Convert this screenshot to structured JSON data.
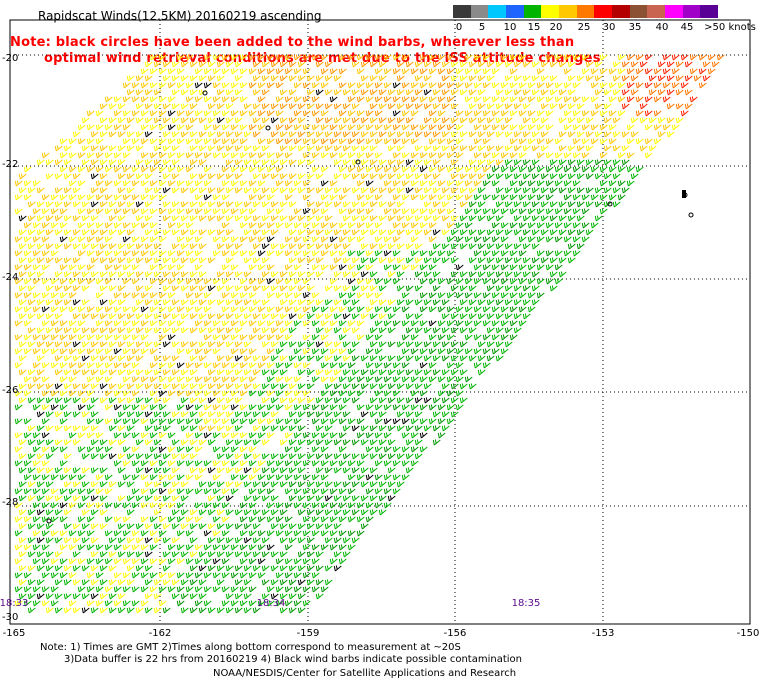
{
  "title": "Rapidscat Winds(12.5KM) 20160219 ascending",
  "note": {
    "line1": "Note: black circles have been added to the wind barbs, wherever less than",
    "line2": "optimal wind retrieval conditions are met due to the ISS attitude changes"
  },
  "colorbar": {
    "colors": [
      "#3a3a3a",
      "#8a8a8a",
      "#00c8ff",
      "#1e64ff",
      "#00b400",
      "#ffff00",
      "#ffc800",
      "#ff7800",
      "#ff0000",
      "#b40000",
      "#8c5032",
      "#c86450",
      "#ff00ff",
      "#a000c8",
      "#5a0096"
    ],
    "labels": [
      "0",
      "5",
      "10",
      "15",
      "20",
      "25",
      "30",
      "35",
      "40",
      "45",
      ">50 knots"
    ]
  },
  "y_ticks": [
    "-20",
    "-22",
    "-24",
    "-26",
    "-28",
    "-30"
  ],
  "x_ticks": [
    "-165",
    "-162",
    "-159",
    "-156",
    "-153",
    "-150"
  ],
  "time_labels": [
    "18:33",
    "18:34",
    "18:35"
  ],
  "footer": {
    "line1": "Note: 1) Times are GMT 2)Times along bottom correspond to measurement at ~20S",
    "line2": "3)Data buffer is 22 hrs from 20160219 4) Black wind barbs indicate possible contamination",
    "line3": "NOAA/NESDIS/Center for Satellite Applications and Research"
  },
  "map": {
    "lon_range": [
      -165,
      -150
    ],
    "lat_range": [
      -30,
      -19.7
    ],
    "grid": true
  }
}
